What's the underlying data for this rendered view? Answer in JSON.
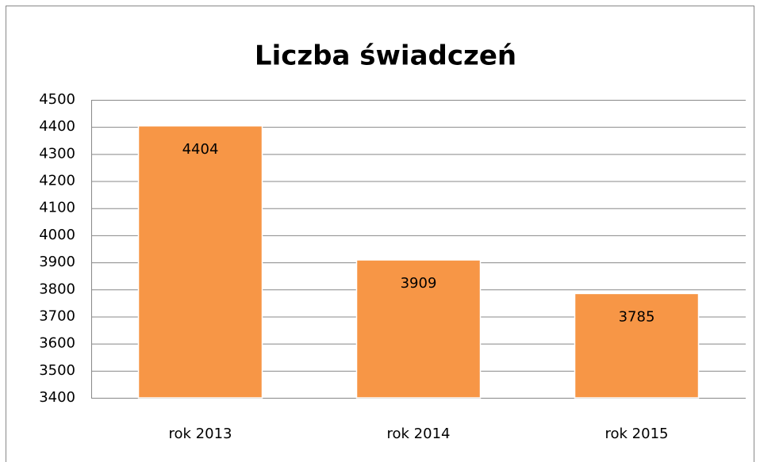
{
  "chart_data": {
    "type": "bar",
    "title": "Liczba świadczeń",
    "categories": [
      "rok 2013",
      "rok 2014",
      "rok 2015"
    ],
    "values": [
      4404,
      3909,
      3785
    ],
    "color": "#f79646",
    "ylim": [
      3400,
      4500
    ],
    "yticks": [
      3400,
      3500,
      3600,
      3700,
      3800,
      3900,
      4000,
      4100,
      4200,
      4300,
      4400,
      4500
    ],
    "grid": true
  }
}
